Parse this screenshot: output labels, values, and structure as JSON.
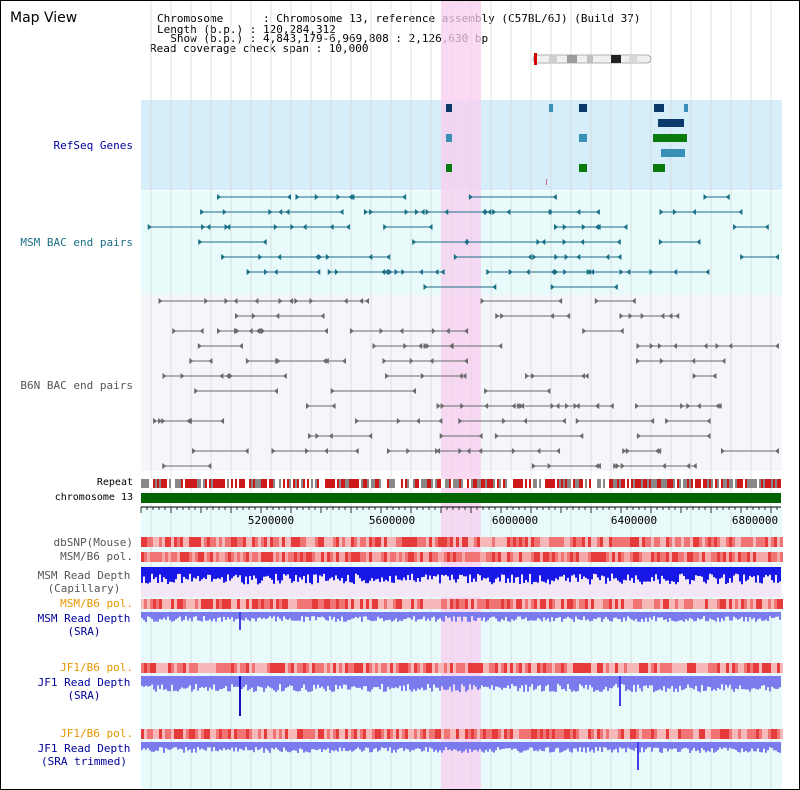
{
  "app": {
    "title": "Map View"
  },
  "info": {
    "chromosome": "Chromosome      : Chromosome 13, reference assembly (C57BL/6J) (Build 37)",
    "length": "Length (b.p.) : 120,284,312",
    "show": "  Show (b.p.) : 4,843,179-6,969,808 : 2,126,630 bp",
    "coverage": "Read coverage check span : 10,000"
  },
  "tracks": {
    "refseq": "RefSeq Genes",
    "msm_bac": "MSM BAC end pairs",
    "b6n_bac": "B6N BAC end pairs",
    "repeat": "Repeat",
    "chromosome": "chromosome 13",
    "dbsnp": "dbSNP(Mouse)",
    "msm_b6_pol_1": "MSM/B6 pol.",
    "msm_depth_cap_1": "MSM Read Depth",
    "msm_depth_cap_2": "(Capillary)",
    "msm_b6_pol_2": "MSM/B6 pol.",
    "msm_depth_sra_1": "MSM Read Depth",
    "msm_depth_sra_2": "(SRA)",
    "jf1_b6_pol_1": "JF1/B6 pol.",
    "jf1_depth_sra_1": "JF1 Read Depth",
    "jf1_depth_sra_2": "(SRA)",
    "jf1_b6_pol_2": "JF1/B6 pol.",
    "jf1_depth_trim_1": "JF1 Read Depth",
    "jf1_depth_trim_2": "(SRA trimmed)"
  },
  "axis": {
    "ticks": [
      "5200000",
      "5600000",
      "6000000",
      "6400000",
      "6800000"
    ]
  },
  "colors": {
    "refseq_bg": "#d6eef9",
    "msm_bg": "#e8fafa",
    "b6n_bg": "#f4f6fa",
    "highlight": "#f8d4f0",
    "label_blue": "#000099",
    "label_orange": "#e59500",
    "gene_dark": "#0c3a6a",
    "gene_teal": "#3a8fb7",
    "gene_green": "#0a7a0a",
    "msm_line": "#1a6f86",
    "b6n_line": "#666666",
    "chrom_bar": "#006400",
    "depth_blue": "#1010e0",
    "depth_light": "#7b7bee"
  }
}
